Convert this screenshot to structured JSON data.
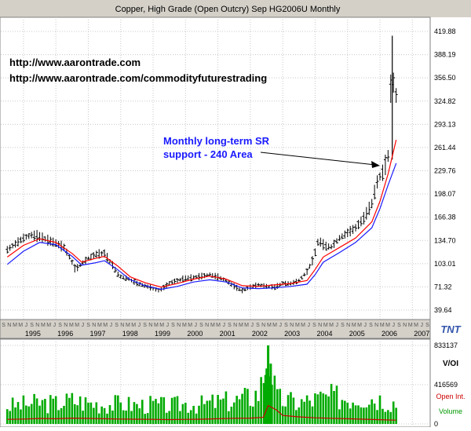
{
  "chart_data": [
    {
      "type": "ohlc",
      "title": "Copper, High Grade (Open Outcry) Sep HG2006U Monthly",
      "ylim": [
        39.64,
        419.88
      ],
      "yticks": [
        419.88,
        388.19,
        356.5,
        324.82,
        293.13,
        261.44,
        229.76,
        198.07,
        166.38,
        134.7,
        103.01,
        71.32,
        39.64
      ],
      "ytick_labels": [
        "419.88",
        "388.19",
        "356.50",
        "324.82",
        "293.13",
        "261.44",
        "229.76",
        "198.07",
        "166.38",
        "134.70",
        "103.01",
        "71.32",
        "39.64"
      ],
      "x_years": [
        "1995",
        "1996",
        "1997",
        "1998",
        "1999",
        "2000",
        "2001",
        "2002",
        "2003",
        "2004",
        "2005",
        "2006",
        "2007"
      ],
      "month_labels": [
        "S",
        "N",
        "M",
        "M",
        "J",
        "S",
        "N",
        "M",
        "M",
        "J",
        "S",
        "N",
        "M",
        "M",
        "J",
        "S",
        "N",
        "M",
        "M",
        "J",
        "S",
        "N",
        "M",
        "M",
        "J",
        "S",
        "N",
        "M",
        "M",
        "J",
        "S",
        "N",
        "M",
        "M",
        "J",
        "S",
        "N",
        "M",
        "M",
        "J",
        "S",
        "N",
        "M",
        "M",
        "J",
        "S",
        "N",
        "M",
        "M",
        "J",
        "S",
        "N",
        "M",
        "M",
        "J",
        "S",
        "N",
        "M",
        "M",
        "J",
        "S",
        "N",
        "M",
        "M",
        "J",
        "S",
        "N",
        "M",
        "M",
        "J",
        "S",
        "N",
        "M",
        "M",
        "J",
        "S"
      ],
      "grid": true,
      "price_points": [
        [
          1994.5,
          122
        ],
        [
          1994.75,
          130
        ],
        [
          1995.0,
          138
        ],
        [
          1995.25,
          142
        ],
        [
          1995.5,
          140
        ],
        [
          1995.75,
          135
        ],
        [
          1996.0,
          131
        ],
        [
          1996.25,
          125
        ],
        [
          1996.45,
          110
        ],
        [
          1996.6,
          95
        ],
        [
          1996.8,
          103
        ],
        [
          1997.0,
          110
        ],
        [
          1997.25,
          116
        ],
        [
          1997.5,
          117
        ],
        [
          1997.75,
          101
        ],
        [
          1997.95,
          86
        ],
        [
          1998.25,
          82
        ],
        [
          1998.5,
          76
        ],
        [
          1998.75,
          73
        ],
        [
          1999.0,
          69
        ],
        [
          1999.2,
          66
        ],
        [
          1999.5,
          76
        ],
        [
          1999.75,
          80
        ],
        [
          2000.0,
          83
        ],
        [
          2000.25,
          84
        ],
        [
          2000.5,
          86
        ],
        [
          2000.75,
          88
        ],
        [
          2001.0,
          85
        ],
        [
          2001.25,
          80
        ],
        [
          2001.5,
          72
        ],
        [
          2001.75,
          66
        ],
        [
          2002.0,
          71
        ],
        [
          2002.25,
          74
        ],
        [
          2002.5,
          72
        ],
        [
          2002.75,
          71
        ],
        [
          2003.0,
          76
        ],
        [
          2003.25,
          76
        ],
        [
          2003.5,
          80
        ],
        [
          2003.75,
          92
        ],
        [
          2003.95,
          110
        ],
        [
          2004.1,
          135
        ],
        [
          2004.3,
          127
        ],
        [
          2004.5,
          126
        ],
        [
          2004.75,
          138
        ],
        [
          2005.0,
          145
        ],
        [
          2005.25,
          152
        ],
        [
          2005.5,
          165
        ],
        [
          2005.75,
          185
        ],
        [
          2005.9,
          213
        ],
        [
          2006.0,
          222
        ],
        [
          2006.1,
          228
        ],
        [
          2006.25,
          250
        ],
        [
          2006.35,
          360
        ],
        [
          2006.45,
          345
        ],
        [
          2006.55,
          320
        ]
      ],
      "big_spike": {
        "x": 2006.38,
        "high": 414,
        "low": 245
      },
      "ma_short": [
        [
          1994.5,
          112
        ],
        [
          1995.0,
          128
        ],
        [
          1995.5,
          137
        ],
        [
          1996.0,
          132
        ],
        [
          1996.5,
          117
        ],
        [
          1996.8,
          105
        ],
        [
          1997.2,
          110
        ],
        [
          1997.5,
          113
        ],
        [
          1997.9,
          100
        ],
        [
          1998.3,
          85
        ],
        [
          1998.75,
          77
        ],
        [
          1999.25,
          71
        ],
        [
          1999.75,
          76
        ],
        [
          2000.25,
          82
        ],
        [
          2000.75,
          86
        ],
        [
          2001.25,
          82
        ],
        [
          2001.75,
          73
        ],
        [
          2002.25,
          72
        ],
        [
          2002.75,
          74
        ],
        [
          2003.25,
          76
        ],
        [
          2003.75,
          80
        ],
        [
          2004.0,
          95
        ],
        [
          2004.25,
          112
        ],
        [
          2004.75,
          125
        ],
        [
          2005.25,
          138
        ],
        [
          2005.75,
          160
        ],
        [
          2006.0,
          188
        ],
        [
          2006.25,
          225
        ],
        [
          2006.5,
          272
        ]
      ],
      "ma_long": [
        [
          1994.5,
          102
        ],
        [
          1995.0,
          120
        ],
        [
          1995.5,
          132
        ],
        [
          1996.0,
          129
        ],
        [
          1996.5,
          113
        ],
        [
          1996.8,
          101
        ],
        [
          1997.2,
          104
        ],
        [
          1997.5,
          107
        ],
        [
          1997.9,
          95
        ],
        [
          1998.3,
          81
        ],
        [
          1998.75,
          73
        ],
        [
          1999.25,
          68
        ],
        [
          1999.75,
          72
        ],
        [
          2000.25,
          78
        ],
        [
          2000.75,
          81
        ],
        [
          2001.25,
          78
        ],
        [
          2001.75,
          70
        ],
        [
          2002.25,
          69
        ],
        [
          2002.75,
          70
        ],
        [
          2003.25,
          72
        ],
        [
          2003.75,
          75
        ],
        [
          2004.0,
          88
        ],
        [
          2004.25,
          105
        ],
        [
          2004.75,
          118
        ],
        [
          2005.25,
          132
        ],
        [
          2005.75,
          152
        ],
        [
          2006.0,
          178
        ],
        [
          2006.25,
          210
        ],
        [
          2006.5,
          240
        ]
      ],
      "annotations": [
        {
          "line1": "Monthly long-term SR",
          "line2": "support - 240 Area"
        }
      ],
      "watermark_lines": [
        "http://www.aarontrade.com",
        "http://www.aarontrade.com/commodityfuturestrading"
      ],
      "logo": "TNT",
      "colors": {
        "price": "#000000",
        "ma_short": "#ff0000",
        "ma_long": "#1a1aff",
        "annotation": "#1a1aff"
      }
    },
    {
      "type": "bar",
      "title": "V/OI",
      "ylim": [
        0,
        833137
      ],
      "yticks": [
        833137,
        416569,
        0
      ],
      "ytick_labels": [
        "833137",
        "416569",
        "0"
      ],
      "legend": [
        "Open Int.",
        "Volume"
      ],
      "colors": {
        "volume": "#00aa00",
        "open_interest": "#cc0000"
      },
      "volume_points": [
        [
          1994.5,
          210000
        ],
        [
          1995.0,
          230000
        ],
        [
          1995.5,
          250000
        ],
        [
          1996.0,
          240000
        ],
        [
          1996.5,
          280000
        ],
        [
          1997.0,
          250000
        ],
        [
          1997.5,
          230000
        ],
        [
          1998.0,
          240000
        ],
        [
          1998.5,
          220000
        ],
        [
          1999.0,
          230000
        ],
        [
          1999.5,
          210000
        ],
        [
          2000.0,
          240000
        ],
        [
          2000.5,
          230000
        ],
        [
          2001.0,
          260000
        ],
        [
          2001.5,
          270000
        ],
        [
          2002.0,
          320000
        ],
        [
          2002.3,
          380000
        ],
        [
          2002.55,
          900000
        ],
        [
          2002.8,
          300000
        ],
        [
          2003.0,
          280000
        ],
        [
          2003.5,
          250000
        ],
        [
          2004.0,
          290000
        ],
        [
          2004.5,
          320000
        ],
        [
          2005.0,
          310000
        ],
        [
          2005.5,
          330000
        ],
        [
          2006.0,
          300000
        ],
        [
          2006.5,
          250000
        ]
      ],
      "oi_points": [
        [
          1994.5,
          48000
        ],
        [
          1995.0,
          52000
        ],
        [
          1995.5,
          58000
        ],
        [
          1996.0,
          55000
        ],
        [
          1996.5,
          62000
        ],
        [
          1997.0,
          58000
        ],
        [
          1997.5,
          55000
        ],
        [
          1998.0,
          52000
        ],
        [
          1998.5,
          50000
        ],
        [
          1999.0,
          48000
        ],
        [
          1999.5,
          46000
        ],
        [
          2000.0,
          48000
        ],
        [
          2000.5,
          50000
        ],
        [
          2001.0,
          55000
        ],
        [
          2001.5,
          60000
        ],
        [
          2002.0,
          62000
        ],
        [
          2002.4,
          70000
        ],
        [
          2002.55,
          195000
        ],
        [
          2002.8,
          150000
        ],
        [
          2003.0,
          90000
        ],
        [
          2003.5,
          75000
        ],
        [
          2004.0,
          65000
        ],
        [
          2004.5,
          60000
        ],
        [
          2005.0,
          55000
        ],
        [
          2005.5,
          50000
        ],
        [
          2006.0,
          45000
        ],
        [
          2006.5,
          40000
        ]
      ]
    }
  ]
}
